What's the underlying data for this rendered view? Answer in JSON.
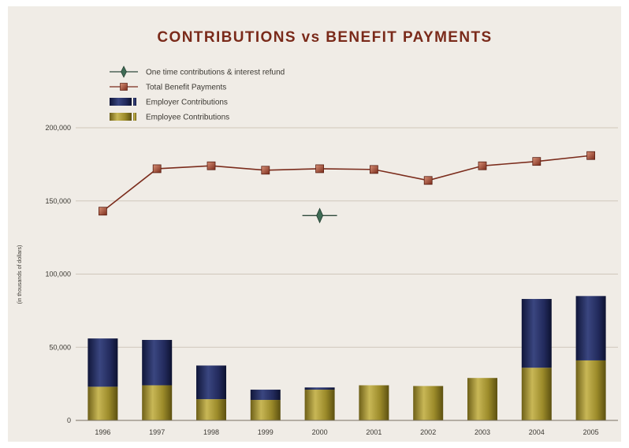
{
  "chart_data": {
    "type": "bar",
    "title": "CONTRIBUTIONS vs BENEFIT PAYMENTS",
    "ylabel": "(in thousands of dollars)",
    "xlabel": "",
    "categories": [
      "1996",
      "1997",
      "1998",
      "1999",
      "2000",
      "2001",
      "2002",
      "2003",
      "2004",
      "2005"
    ],
    "ylim": [
      0,
      200000
    ],
    "yticks": [
      0,
      50000,
      100000,
      150000,
      200000
    ],
    "ytick_labels": [
      "0",
      "50,000",
      "100,000",
      "150,000",
      "200,000"
    ],
    "grid": true,
    "legend_position": "top-left",
    "series": [
      {
        "name": "Employee Contributions",
        "kind": "stacked-bar-bottom",
        "color": "#9c8b2a",
        "values": [
          23000,
          24000,
          14500,
          14000,
          21000,
          24000,
          23500,
          29000,
          36000,
          41000
        ]
      },
      {
        "name": "Employer Contributions",
        "kind": "stacked-bar-top",
        "color": "#222a5c",
        "values": [
          33000,
          31000,
          23000,
          7000,
          1500,
          0,
          0,
          0,
          47000,
          44000
        ]
      },
      {
        "name": "Total Benefit Payments",
        "kind": "line",
        "color": "#7b2c1c",
        "values": [
          143000,
          172000,
          174000,
          171000,
          172000,
          171500,
          164000,
          174000,
          177000,
          181000
        ]
      },
      {
        "name": "One time contributions & interest refund",
        "kind": "point",
        "color": "#3f6b55",
        "points": [
          {
            "x": "2000",
            "y": 140000
          }
        ]
      }
    ],
    "legend": [
      {
        "label": "One time contributions & interest refund",
        "icon": "diamond-marker"
      },
      {
        "label": "Total Benefit Payments",
        "icon": "square-line-marker"
      },
      {
        "label": "Employer Contributions",
        "icon": "bar-swatch"
      },
      {
        "label": "Employee Contributions",
        "icon": "bar-swatch"
      }
    ]
  },
  "theme": {
    "background_panel": "#f0ece6",
    "grid_color": "#cfc7bb",
    "axis_color": "#777062",
    "title_color": "#7a2a1a",
    "text_color": "#3b3832"
  }
}
